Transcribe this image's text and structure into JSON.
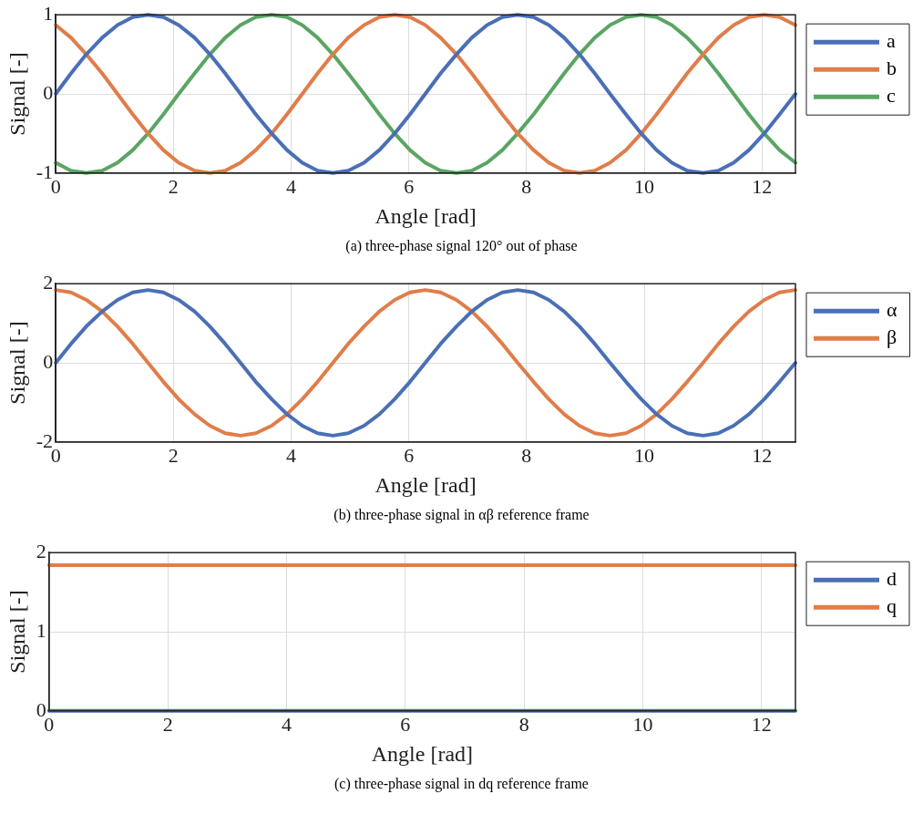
{
  "chart_data": [
    {
      "type": "line",
      "xlabel": "Angle [rad]",
      "ylabel": "Signal [-]",
      "annotations": [
        "(a) three-phase signal 120° out of phase"
      ],
      "xlim": [
        0,
        12.57
      ],
      "xticks": [
        0,
        2,
        4,
        6,
        8,
        10,
        12
      ],
      "ylim": [
        -1,
        1
      ],
      "yticks": [
        -1,
        0,
        1
      ],
      "grid": true,
      "legend": "right",
      "marker": "none",
      "line_style": "solid",
      "x": [
        0,
        0.26,
        0.52,
        0.79,
        1.05,
        1.31,
        1.57,
        1.83,
        2.09,
        2.36,
        2.62,
        2.88,
        3.14,
        3.4,
        3.67,
        3.93,
        4.19,
        4.45,
        4.71,
        4.97,
        5.24,
        5.5,
        5.76,
        6.02,
        6.28,
        6.54,
        6.81,
        7.07,
        7.33,
        7.59,
        7.85,
        8.12,
        8.38,
        8.64,
        8.9,
        9.16,
        9.42,
        9.69,
        9.95,
        10.21,
        10.47,
        10.73,
        11,
        11.26,
        11.52,
        11.78,
        12.04,
        12.3,
        12.57
      ],
      "series": [
        {
          "name": "a",
          "color": "#4a6fb5",
          "values": [
            0,
            0.26,
            0.5,
            0.71,
            0.87,
            0.97,
            1,
            0.97,
            0.87,
            0.71,
            0.5,
            0.26,
            0,
            -0.26,
            -0.5,
            -0.71,
            -0.87,
            -0.97,
            -1,
            -0.97,
            -0.87,
            -0.71,
            -0.5,
            -0.26,
            0,
            0.26,
            0.5,
            0.71,
            0.87,
            0.97,
            1,
            0.97,
            0.87,
            0.71,
            0.5,
            0.26,
            0,
            -0.26,
            -0.5,
            -0.71,
            -0.87,
            -0.97,
            -1,
            -0.97,
            -0.87,
            -0.71,
            -0.5,
            -0.26,
            0
          ]
        },
        {
          "name": "b",
          "color": "#e07d4a",
          "values": [
            0.87,
            0.71,
            0.5,
            0.26,
            0,
            -0.26,
            -0.5,
            -0.71,
            -0.87,
            -0.97,
            -1,
            -0.97,
            -0.87,
            -0.71,
            -0.5,
            -0.26,
            0,
            0.26,
            0.5,
            0.71,
            0.87,
            0.97,
            1,
            0.97,
            0.87,
            0.71,
            0.5,
            0.26,
            0,
            -0.26,
            -0.5,
            -0.71,
            -0.87,
            -0.97,
            -1,
            -0.97,
            -0.87,
            -0.71,
            -0.5,
            -0.26,
            0,
            0.26,
            0.5,
            0.71,
            0.87,
            0.97,
            1,
            0.97,
            0.87
          ]
        },
        {
          "name": "c",
          "color": "#5aa564",
          "values": [
            -0.87,
            -0.97,
            -1,
            -0.97,
            -0.87,
            -0.71,
            -0.5,
            -0.26,
            0,
            0.26,
            0.5,
            0.71,
            0.87,
            0.97,
            1,
            0.97,
            0.87,
            0.71,
            0.5,
            0.26,
            0,
            -0.26,
            -0.5,
            -0.71,
            -0.87,
            -0.97,
            -1,
            -0.97,
            -0.87,
            -0.71,
            -0.5,
            -0.26,
            0,
            0.26,
            0.5,
            0.71,
            0.87,
            0.97,
            1,
            0.97,
            0.87,
            0.71,
            0.5,
            0.26,
            0,
            -0.26,
            -0.5,
            -0.71,
            -0.87
          ]
        }
      ]
    },
    {
      "type": "line",
      "xlabel": "Angle [rad]",
      "ylabel": "Signal [-]",
      "annotations": [
        "(b) three-phase signal in αβ reference frame"
      ],
      "xlim": [
        0,
        12.57
      ],
      "xticks": [
        0,
        2,
        4,
        6,
        8,
        10,
        12
      ],
      "ylim": [
        -2,
        2
      ],
      "yticks": [
        -2,
        0,
        2
      ],
      "grid": true,
      "legend": "right",
      "marker": "none",
      "line_style": "solid",
      "x": [
        0,
        0.26,
        0.52,
        0.79,
        1.05,
        1.31,
        1.57,
        1.83,
        2.09,
        2.36,
        2.62,
        2.88,
        3.14,
        3.4,
        3.67,
        3.93,
        4.19,
        4.45,
        4.71,
        4.97,
        5.24,
        5.5,
        5.76,
        6.02,
        6.28,
        6.54,
        6.81,
        7.07,
        7.33,
        7.59,
        7.85,
        8.12,
        8.38,
        8.64,
        8.9,
        9.16,
        9.42,
        9.69,
        9.95,
        10.21,
        10.47,
        10.73,
        11,
        11.26,
        11.52,
        11.78,
        12.04,
        12.3,
        12.57
      ],
      "series": [
        {
          "name": "α",
          "color": "#4a6fb5",
          "values": [
            0,
            0.48,
            0.92,
            1.3,
            1.59,
            1.78,
            1.84,
            1.78,
            1.59,
            1.3,
            0.92,
            0.48,
            0,
            -0.48,
            -0.92,
            -1.3,
            -1.59,
            -1.78,
            -1.84,
            -1.78,
            -1.59,
            -1.3,
            -0.92,
            -0.48,
            0,
            0.48,
            0.92,
            1.3,
            1.59,
            1.78,
            1.84,
            1.78,
            1.59,
            1.3,
            0.92,
            0.48,
            0,
            -0.48,
            -0.92,
            -1.3,
            -1.59,
            -1.78,
            -1.84,
            -1.78,
            -1.59,
            -1.3,
            -0.92,
            -0.48,
            0
          ]
        },
        {
          "name": "β",
          "color": "#e07d4a",
          "values": [
            1.84,
            1.78,
            1.59,
            1.3,
            0.92,
            0.48,
            0,
            -0.48,
            -0.92,
            -1.3,
            -1.59,
            -1.78,
            -1.84,
            -1.78,
            -1.59,
            -1.3,
            -0.92,
            -0.48,
            0,
            0.48,
            0.92,
            1.3,
            1.59,
            1.78,
            1.84,
            1.78,
            1.59,
            1.3,
            0.92,
            0.48,
            0,
            -0.48,
            -0.92,
            -1.3,
            -1.59,
            -1.78,
            -1.84,
            -1.78,
            -1.59,
            -1.3,
            -0.92,
            -0.48,
            0,
            0.48,
            0.92,
            1.3,
            1.59,
            1.78,
            1.84
          ]
        }
      ]
    },
    {
      "type": "line",
      "xlabel": "Angle [rad]",
      "ylabel": "Signal [-]",
      "annotations": [
        "(c) three-phase signal in dq reference frame"
      ],
      "xlim": [
        0,
        12.57
      ],
      "xticks": [
        0,
        2,
        4,
        6,
        8,
        10,
        12
      ],
      "ylim": [
        0,
        2
      ],
      "yticks": [
        0,
        1,
        2
      ],
      "grid": true,
      "legend": "right",
      "marker": "none",
      "line_style": "solid",
      "x": [
        0,
        12.57
      ],
      "series": [
        {
          "name": "d",
          "color": "#4a6fb5",
          "values": [
            0,
            0
          ]
        },
        {
          "name": "q",
          "color": "#e07d4a",
          "values": [
            1.84,
            1.84
          ]
        }
      ]
    }
  ]
}
